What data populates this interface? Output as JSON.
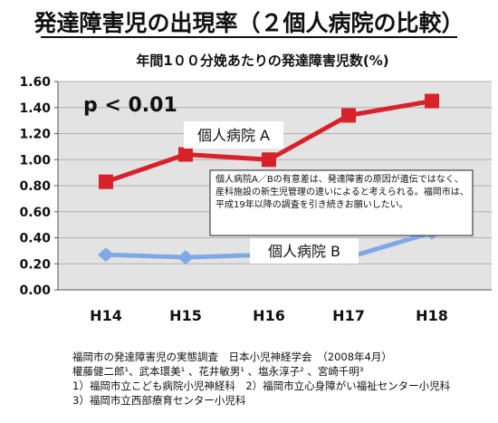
{
  "page": {
    "title": "発達障害児の出現率（２個人病院の比較）"
  },
  "chart_data": {
    "type": "line",
    "title": "年間1００分娩あたりの発達障害児数(%)",
    "categories": [
      "H14",
      "H15",
      "H16",
      "H17",
      "H18"
    ],
    "series": [
      {
        "name": "個人病院 A",
        "values": [
          0.83,
          1.04,
          1.0,
          1.34,
          1.45
        ],
        "color": "#d9212a"
      },
      {
        "name": "個人病院 B",
        "values": [
          0.27,
          0.25,
          0.27,
          0.25,
          0.44
        ],
        "color": "#7fa9e6"
      }
    ],
    "y_ticks": [
      "0.00",
      "0.20",
      "0.40",
      "0.60",
      "0.80",
      "1.00",
      "1.20",
      "1.40",
      "1.60"
    ],
    "ylim": [
      0,
      1.6
    ],
    "grid": true,
    "p_value": "p < 0.01",
    "note": "個人病院A／Bの有意差は、発達障害の原因が遺伝ではなく、産科施設の新生児管理の違いによると考えられる。福岡市は、平成19年以降の調査を引き続きお願いしたい。",
    "plot_bg": "#e3e3e3"
  },
  "footer": [
    "福岡市の発達障害児の実態調査　日本小児神経学会　（2008年4月）",
    "權藤健二郎¹、武本環美¹ 、花井敏男¹ 、塩永淳子² 、宮崎千明³",
    "1）福岡市立こども病院小児神経科　2）福岡市立心身障がい福祉センター小児科",
    "3）福岡市立西部療育センター小児科"
  ]
}
